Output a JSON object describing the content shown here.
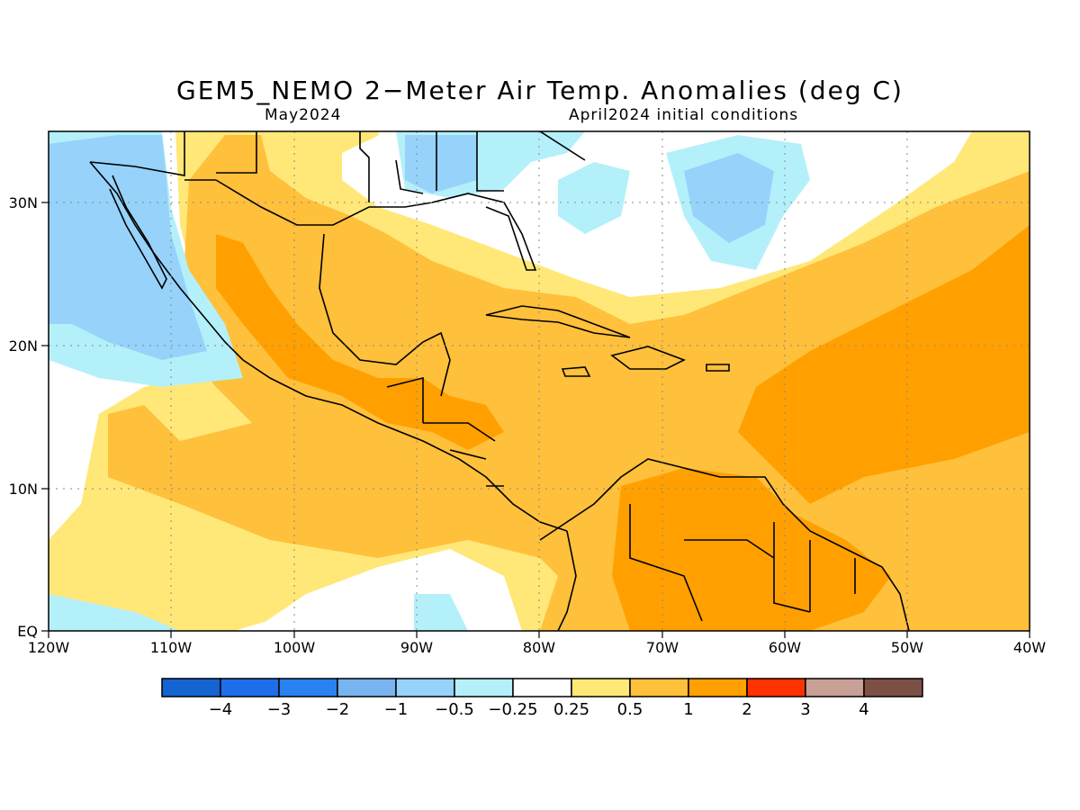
{
  "title": "GEM5_NEMO 2−Meter Air Temp. Anomalies (deg C)",
  "subtitle_left": "May2024",
  "subtitle_right": "April2024 initial conditions",
  "x_ticks": [
    "120W",
    "110W",
    "100W",
    "90W",
    "80W",
    "70W",
    "60W",
    "50W",
    "40W"
  ],
  "y_ticks": [
    "30N",
    "20N",
    "10N",
    "EQ"
  ],
  "colorbar": {
    "colors": [
      "#1464d2",
      "#1e6eeb",
      "#2882f0",
      "#78b4f0",
      "#96d2fa",
      "#b4f0fa",
      "#ffffff",
      "#ffe878",
      "#ffc03c",
      "#ffa000",
      "#ff3200",
      "#c8a096",
      "#7d5046"
    ],
    "labels": [
      "−4",
      "−3",
      "−2",
      "−1",
      "−0.5",
      "−0.25",
      "0.25",
      "0.5",
      "1",
      "2",
      "3",
      "4"
    ]
  }
}
